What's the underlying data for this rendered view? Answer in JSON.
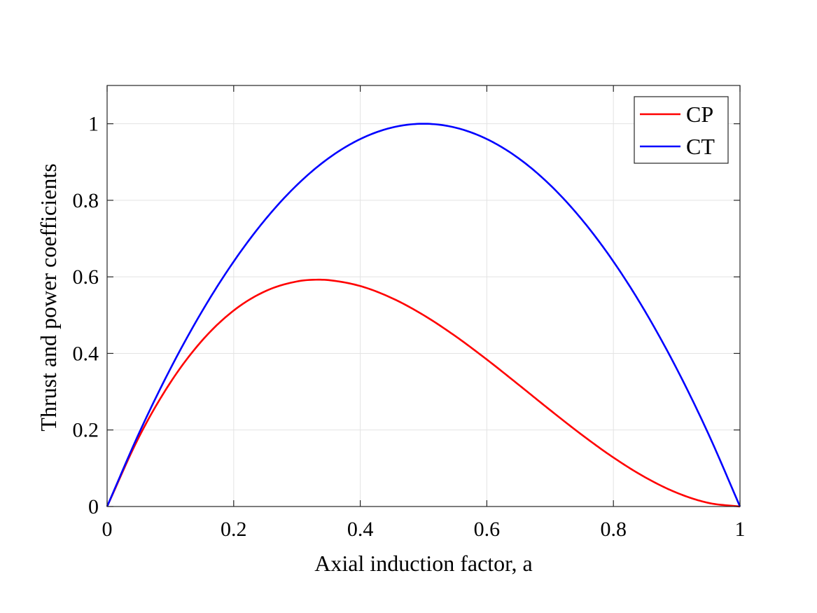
{
  "chart_data": {
    "type": "line",
    "xlabel": "Axial induction factor, a",
    "ylabel": "Thrust and power coefficients",
    "xlim": [
      0,
      1
    ],
    "ylim": [
      0,
      1.1
    ],
    "xticks": [
      0,
      0.2,
      0.4,
      0.6,
      0.8,
      1
    ],
    "xtick_labels": [
      "0",
      "0.2",
      "0.4",
      "0.6",
      "0.8",
      "1"
    ],
    "yticks": [
      0,
      0.2,
      0.4,
      0.6,
      0.8,
      1
    ],
    "ytick_labels": [
      "0",
      "0.2",
      "0.4",
      "0.6",
      "0.8",
      "1"
    ],
    "grid": true,
    "legend_position": "top-right",
    "series": [
      {
        "name": "CP",
        "color": "#ff0000",
        "x": [
          0,
          0.05,
          0.1,
          0.15,
          0.2,
          0.25,
          0.3,
          0.3333,
          0.35,
          0.4,
          0.45,
          0.5,
          0.55,
          0.6,
          0.65,
          0.7,
          0.75,
          0.8,
          0.85,
          0.9,
          0.95,
          1
        ],
        "y": [
          0,
          0.1805,
          0.324,
          0.4335,
          0.512,
          0.5625,
          0.588,
          0.5926,
          0.5915,
          0.576,
          0.5445,
          0.5,
          0.4455,
          0.384,
          0.3185,
          0.252,
          0.1875,
          0.128,
          0.0765,
          0.036,
          0.0095,
          0
        ]
      },
      {
        "name": "CT",
        "color": "#0000ff",
        "x": [
          0,
          0.05,
          0.1,
          0.15,
          0.2,
          0.25,
          0.3,
          0.35,
          0.4,
          0.45,
          0.5,
          0.55,
          0.6,
          0.65,
          0.7,
          0.75,
          0.8,
          0.85,
          0.9,
          0.95,
          1
        ],
        "y": [
          0,
          0.19,
          0.36,
          0.51,
          0.64,
          0.75,
          0.84,
          0.91,
          0.96,
          0.99,
          1,
          0.99,
          0.96,
          0.91,
          0.84,
          0.75,
          0.64,
          0.51,
          0.36,
          0.19,
          0
        ]
      }
    ]
  }
}
